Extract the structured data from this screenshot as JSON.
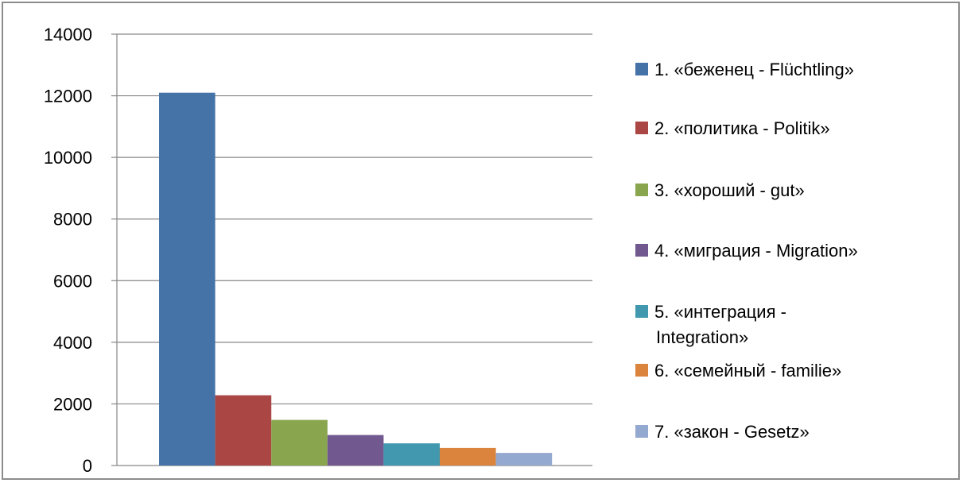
{
  "chart_data": {
    "type": "bar",
    "title": "",
    "xlabel": "",
    "ylabel": "",
    "ylim": [
      0,
      14000
    ],
    "yticks": [
      0,
      2000,
      4000,
      6000,
      8000,
      10000,
      12000,
      14000
    ],
    "ytick_labels": [
      "0",
      "2000",
      "4000",
      "6000",
      "8000",
      "10000",
      "12000",
      "14000"
    ],
    "grid": true,
    "legend_position": "right",
    "categories": [
      ""
    ],
    "series": [
      {
        "name": "1. «беженец - Flüchtling»",
        "legend_lines": [
          "1. «беженец - Flüchtling»"
        ],
        "color": "#4572A7",
        "values": [
          12100
        ]
      },
      {
        "name": "2. «политика - Politik»",
        "legend_lines": [
          "2. «политика - Politik»"
        ],
        "color": "#AA4643",
        "values": [
          2280
        ]
      },
      {
        "name": "3. «хороший - gut»",
        "legend_lines": [
          "3. «хороший - gut»"
        ],
        "color": "#89A54E",
        "values": [
          1480
        ]
      },
      {
        "name": "4. «миграция - Migration»",
        "legend_lines": [
          "4. «миграция - Migration»"
        ],
        "color": "#71588F",
        "values": [
          990
        ]
      },
      {
        "name": "5. «интеграция - Integration»",
        "legend_lines": [
          "5. «интеграция -",
          "Integration»"
        ],
        "color": "#4198AF",
        "values": [
          720
        ]
      },
      {
        "name": "6. «семейный - familie»",
        "legend_lines": [
          "6. «семейный - familie»"
        ],
        "color": "#DB843D",
        "values": [
          570
        ]
      },
      {
        "name": "7. «закон - Gesetz»",
        "legend_lines": [
          "7. «закон - Gesetz»"
        ],
        "color": "#93A9CF",
        "values": [
          410
        ]
      }
    ]
  }
}
